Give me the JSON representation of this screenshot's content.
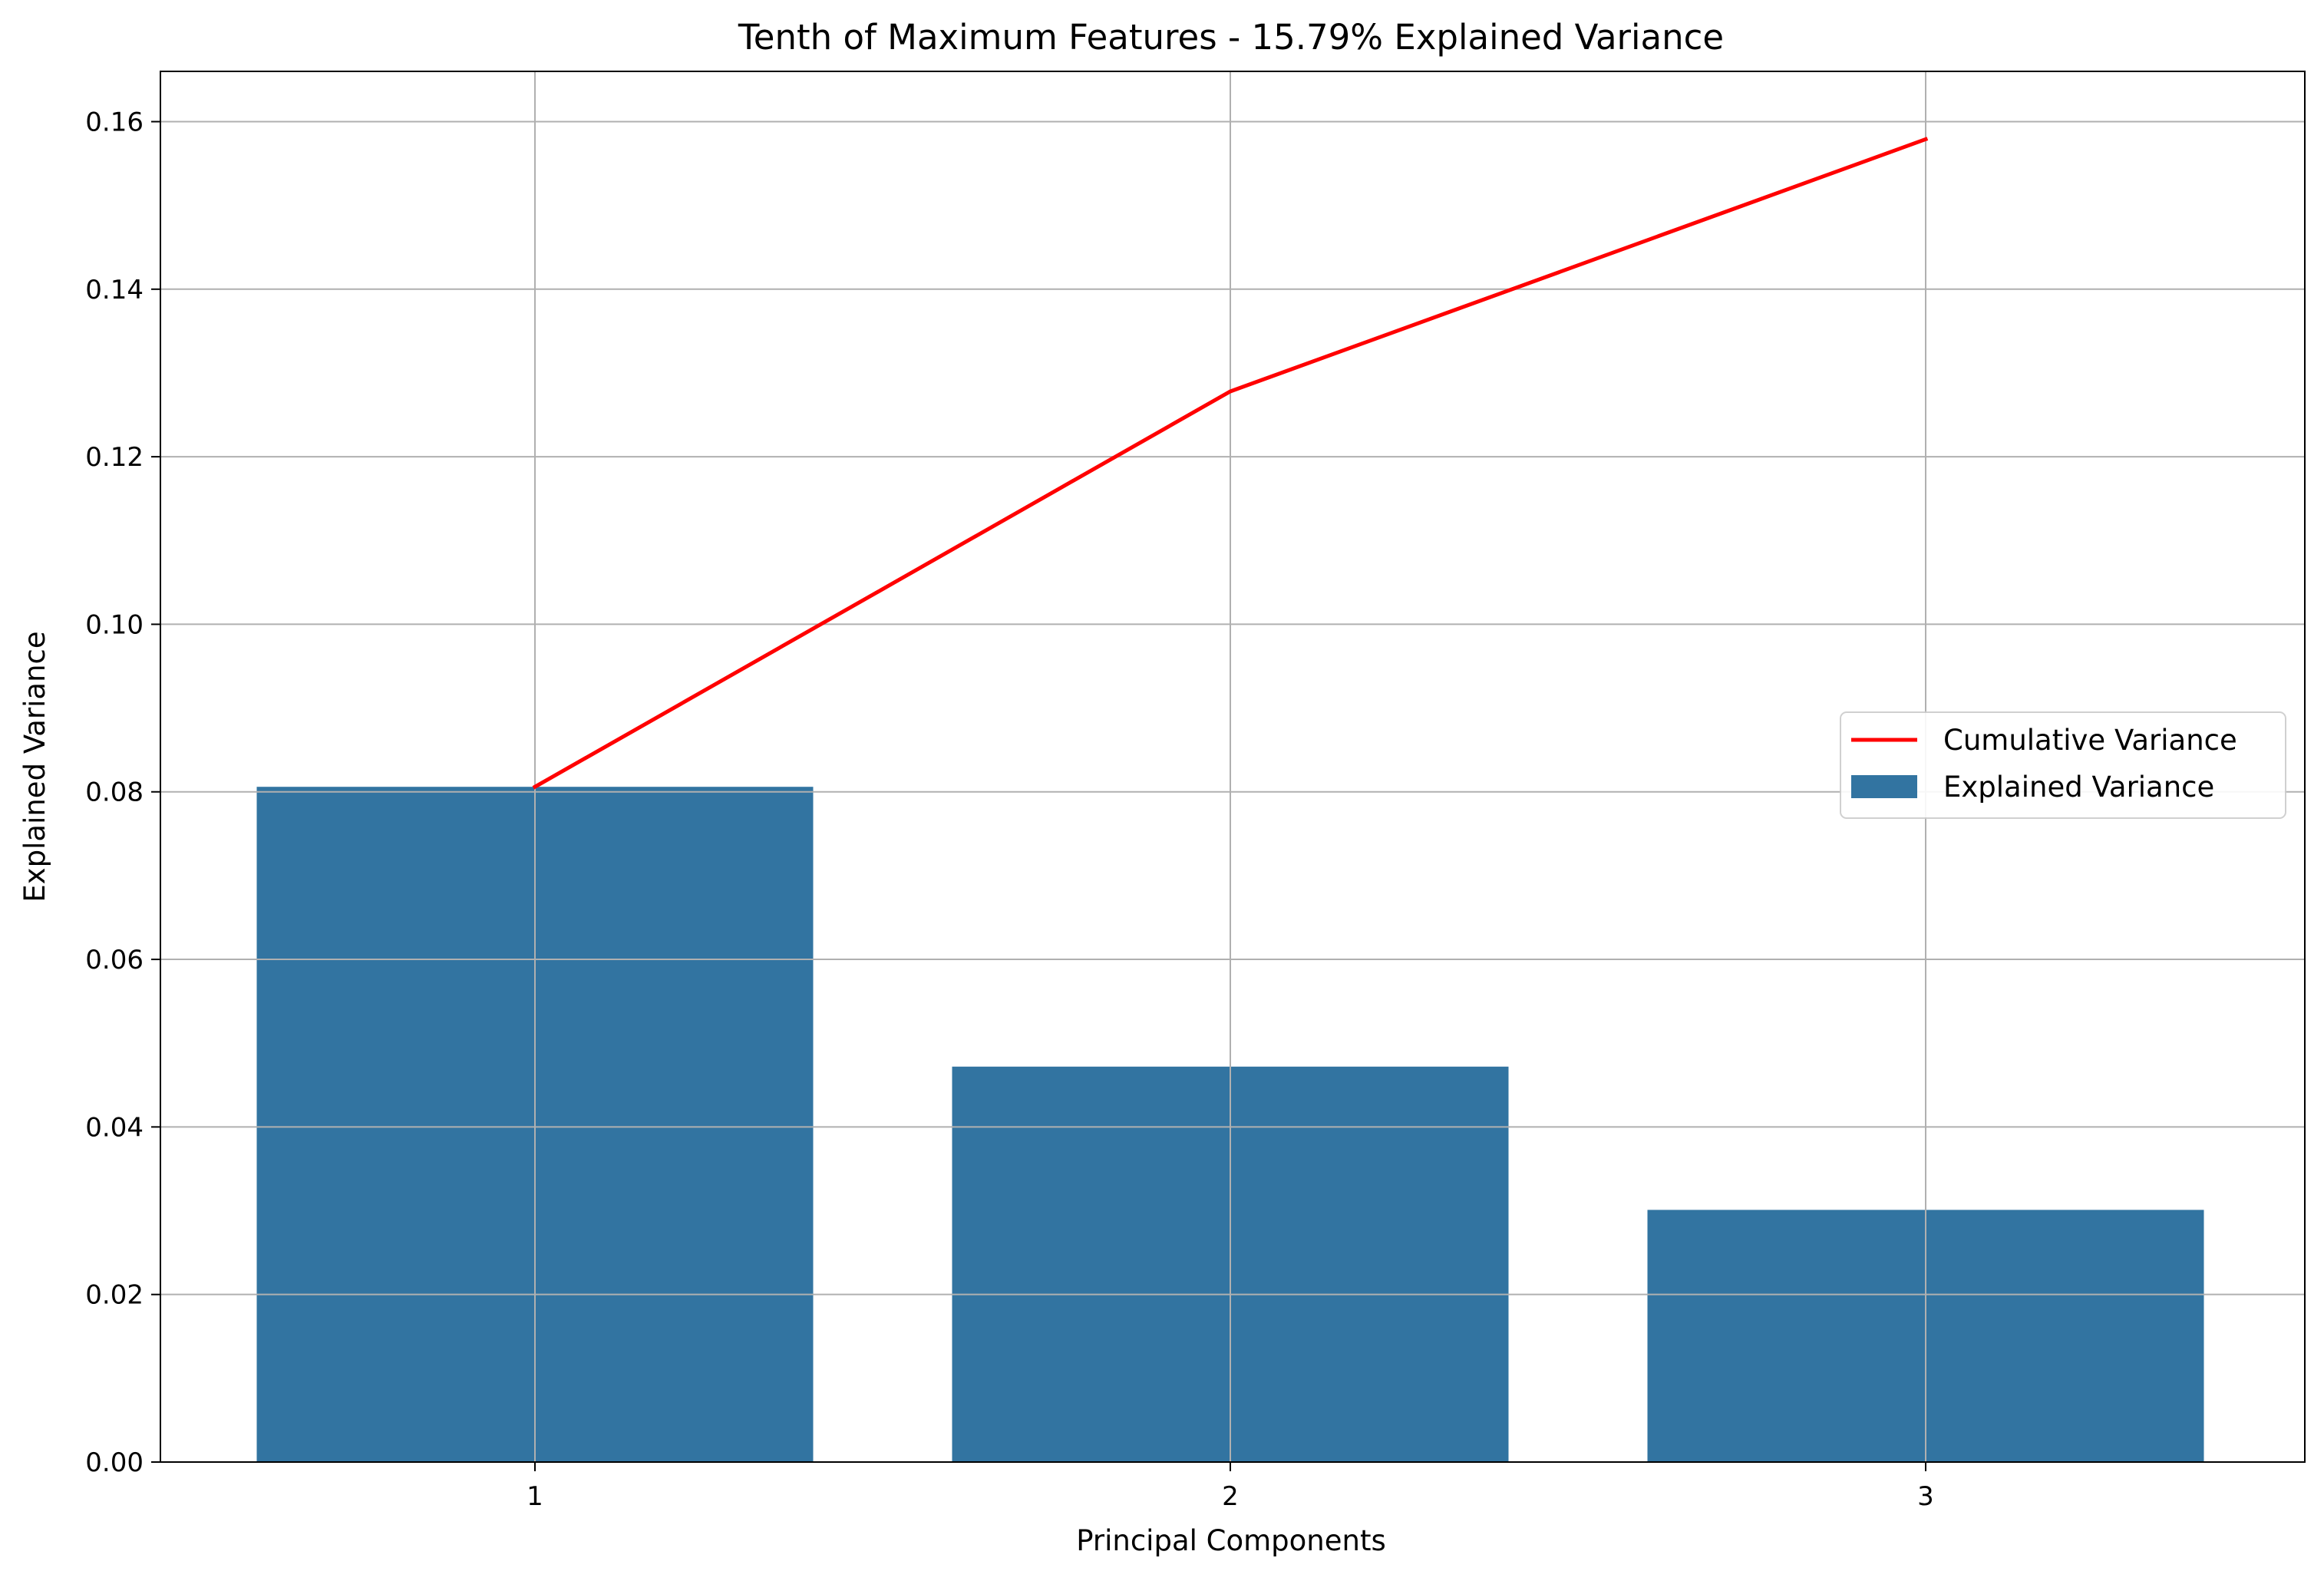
{
  "chart_data": {
    "type": "bar",
    "title": "Tenth of Maximum Features - 15.79% Explained Variance",
    "xlabel": "Principal Components",
    "ylabel": "Explained Variance",
    "categories": [
      "1",
      "2",
      "3"
    ],
    "x_ticks": [
      "1",
      "2",
      "3"
    ],
    "y_ticks": [
      "0.00",
      "0.02",
      "0.04",
      "0.06",
      "0.08",
      "0.10",
      "0.12",
      "0.14",
      "0.16"
    ],
    "ylim": [
      0,
      0.166
    ],
    "grid": true,
    "legend_position": "center-right",
    "series": [
      {
        "name": "Cumulative Variance",
        "type": "line",
        "color": "#ff0000",
        "values": [
          0.0806,
          0.1278,
          0.1579
        ]
      },
      {
        "name": "Explained Variance",
        "type": "bar",
        "color": "#3274a1",
        "values": [
          0.0806,
          0.0472,
          0.0301
        ]
      }
    ]
  }
}
